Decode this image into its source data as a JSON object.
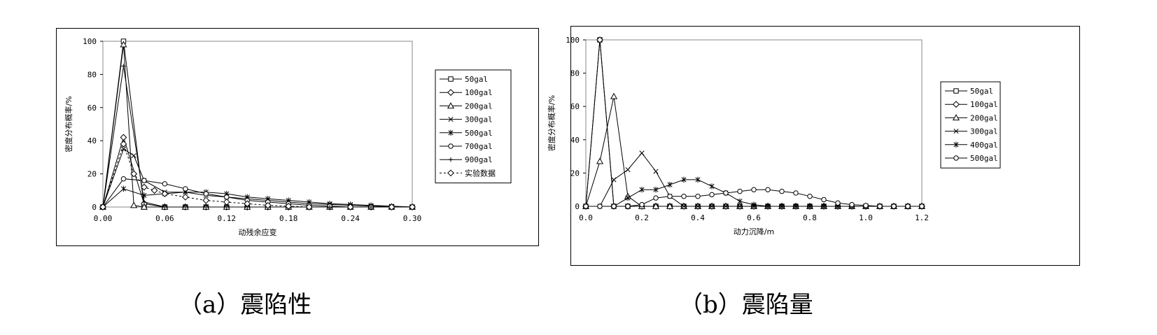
{
  "captions": {
    "a": "（a）震陷性",
    "b": "（b）震陷量"
  },
  "chart_data": [
    {
      "type": "line",
      "xlabel": "动残余应变",
      "ylabel": "密度分布概率/%",
      "xlim": [
        0,
        0.3
      ],
      "ylim": [
        0,
        100
      ],
      "xticks": [
        "0.00",
        "0.06",
        "0.12",
        "0.18",
        "0.24",
        "0.30"
      ],
      "yticks": [
        "0",
        "20",
        "40",
        "60",
        "80",
        "100"
      ],
      "grid": false,
      "legend_position": "right",
      "series": [
        {
          "name": "50gal",
          "marker": "square",
          "dash": false,
          "x": [
            0,
            0.02,
            0.04,
            0.06,
            0.08,
            0.1,
            0.12,
            0.14,
            0.16,
            0.18,
            0.2,
            0.22,
            0.24,
            0.26,
            0.28,
            0.3
          ],
          "y": [
            0,
            100,
            0,
            0,
            0,
            0,
            0,
            0,
            0,
            0,
            0,
            0,
            0,
            0,
            0,
            0
          ]
        },
        {
          "name": "100gal",
          "marker": "diamond",
          "dash": false,
          "x": [
            0,
            0.02,
            0.04,
            0.06,
            0.08,
            0.1,
            0.12,
            0.14,
            0.16,
            0.18,
            0.2,
            0.22,
            0.24,
            0.26,
            0.28,
            0.3
          ],
          "y": [
            0,
            42,
            2,
            0,
            0,
            0,
            0,
            0,
            0,
            0,
            0,
            0,
            0,
            0,
            0,
            0
          ]
        },
        {
          "name": "200gal",
          "marker": "triangle",
          "dash": false,
          "x": [
            0,
            0.02,
            0.03,
            0.04,
            0.06,
            0.08,
            0.1,
            0.12,
            0.14,
            0.16,
            0.18,
            0.2,
            0.22,
            0.24,
            0.26,
            0.28,
            0.3
          ],
          "y": [
            0,
            98,
            1,
            0,
            0,
            0,
            0,
            0,
            0,
            0,
            0,
            0,
            0,
            0,
            0,
            0,
            0
          ]
        },
        {
          "name": "300gal",
          "marker": "x",
          "dash": false,
          "x": [
            0,
            0.02,
            0.03,
            0.04,
            0.06,
            0.08,
            0.1,
            0.12,
            0.14,
            0.16,
            0.18,
            0.2,
            0.22,
            0.24,
            0.26,
            0.28,
            0.3
          ],
          "y": [
            0,
            35,
            31,
            16,
            9,
            9,
            7,
            6,
            5,
            4,
            3,
            2,
            1.5,
            1,
            0.5,
            0.3,
            0
          ]
        },
        {
          "name": "500gal",
          "marker": "star",
          "dash": false,
          "x": [
            0,
            0.02,
            0.04,
            0.06,
            0.08,
            0.1,
            0.12,
            0.14,
            0.16,
            0.18,
            0.2,
            0.22,
            0.24,
            0.26,
            0.28,
            0.3
          ],
          "y": [
            0,
            11,
            7,
            8,
            9,
            9,
            8,
            6,
            5,
            4,
            3,
            2,
            1.5,
            1,
            0.5,
            0
          ]
        },
        {
          "name": "700gal",
          "marker": "circle",
          "dash": false,
          "x": [
            0,
            0.02,
            0.04,
            0.06,
            0.08,
            0.1,
            0.12,
            0.14,
            0.16,
            0.18,
            0.2,
            0.22,
            0.24,
            0.26,
            0.28,
            0.3
          ],
          "y": [
            0,
            17,
            16,
            14,
            11,
            8,
            6,
            4,
            3,
            2,
            1,
            0.5,
            0,
            0,
            0,
            0
          ]
        },
        {
          "name": "900gal",
          "marker": "plus",
          "dash": false,
          "x": [
            0,
            0.02,
            0.04,
            0.06,
            0.08,
            0.1,
            0.12,
            0.14,
            0.16,
            0.18,
            0.2,
            0.22,
            0.24,
            0.26,
            0.28,
            0.3
          ],
          "y": [
            0,
            85,
            3,
            0,
            0,
            0,
            0,
            0,
            0,
            0,
            0,
            0,
            0,
            0,
            0,
            0
          ]
        },
        {
          "name": "实验数据",
          "marker": "diamond-open",
          "dash": true,
          "x": [
            0,
            0.02,
            0.03,
            0.04,
            0.05,
            0.06,
            0.08,
            0.1,
            0.12,
            0.14,
            0.16,
            0.18,
            0.2,
            0.24,
            0.28,
            0.3
          ],
          "y": [
            0,
            38,
            20,
            12,
            10,
            8,
            6,
            4,
            3,
            2,
            1,
            0.5,
            0,
            0,
            0,
            0
          ]
        }
      ]
    },
    {
      "type": "line",
      "xlabel": "动力沉降/m",
      "ylabel": "密度分布概率/%",
      "xlim": [
        0,
        1.2
      ],
      "ylim": [
        0,
        100
      ],
      "xticks": [
        "0.0",
        "0.2",
        "0.4",
        "0.6",
        "0.8",
        "1.0",
        "1.2"
      ],
      "yticks": [
        "0",
        "20",
        "40",
        "60",
        "80",
        "100"
      ],
      "grid": false,
      "legend_position": "right",
      "series": [
        {
          "name": "50gal",
          "marker": "square",
          "dash": false,
          "x": [
            0,
            0.05,
            0.1,
            0.15,
            0.2,
            0.25,
            0.3,
            0.35,
            0.4,
            0.45,
            0.5,
            0.55,
            0.6,
            0.65,
            0.7,
            0.75,
            0.8,
            0.85,
            0.9,
            0.95,
            1.0,
            1.05,
            1.1,
            1.15,
            1.2
          ],
          "y": [
            0,
            100,
            0,
            0,
            0,
            0,
            0,
            0,
            0,
            0,
            0,
            0,
            0,
            0,
            0,
            0,
            0,
            0,
            0,
            0,
            0,
            0,
            0,
            0,
            0
          ]
        },
        {
          "name": "100gal",
          "marker": "diamond",
          "dash": false,
          "x": [
            0,
            0.05,
            0.1,
            0.15,
            0.2,
            0.25,
            0.3,
            0.35,
            0.4,
            0.45,
            0.5,
            0.55,
            0.6,
            0.65,
            0.7,
            0.75,
            0.8,
            0.85,
            0.9,
            0.95,
            1.0,
            1.05,
            1.1,
            1.15,
            1.2
          ],
          "y": [
            0,
            100,
            0,
            0,
            0,
            0,
            0,
            0,
            0,
            0,
            0,
            0,
            0,
            0,
            0,
            0,
            0,
            0,
            0,
            0,
            0,
            0,
            0,
            0,
            0
          ]
        },
        {
          "name": "200gal",
          "marker": "triangle",
          "dash": false,
          "x": [
            0,
            0.05,
            0.1,
            0.15,
            0.2,
            0.25,
            0.3,
            0.35,
            0.4,
            0.45,
            0.5,
            0.55,
            0.6,
            0.65,
            0.7,
            0.75,
            0.8,
            0.85,
            0.9,
            0.95,
            1.0,
            1.05,
            1.1,
            1.15,
            1.2
          ],
          "y": [
            0,
            27,
            66,
            6,
            0,
            0,
            0,
            0,
            0,
            0,
            0,
            0,
            0,
            0,
            0,
            0,
            0,
            0,
            0,
            0,
            0,
            0,
            0,
            0,
            0
          ]
        },
        {
          "name": "300gal",
          "marker": "x",
          "dash": false,
          "x": [
            0,
            0.05,
            0.1,
            0.15,
            0.2,
            0.25,
            0.3,
            0.35,
            0.4,
            0.45,
            0.5,
            0.55,
            0.6,
            0.65,
            0.7,
            0.75,
            0.8,
            0.85,
            0.9,
            0.95,
            1.0,
            1.05,
            1.1,
            1.15,
            1.2
          ],
          "y": [
            0,
            0,
            16,
            22,
            32,
            21,
            6,
            0,
            0,
            0,
            0,
            0,
            0,
            0,
            0,
            0,
            0,
            0,
            0,
            0,
            0,
            0,
            0,
            0,
            0
          ]
        },
        {
          "name": "400gal",
          "marker": "star",
          "dash": false,
          "x": [
            0,
            0.05,
            0.1,
            0.15,
            0.2,
            0.25,
            0.3,
            0.35,
            0.4,
            0.45,
            0.5,
            0.55,
            0.6,
            0.65,
            0.7,
            0.75,
            0.8,
            0.85,
            0.9,
            0.95,
            1.0,
            1.05,
            1.1,
            1.15,
            1.2
          ],
          "y": [
            0,
            0,
            0,
            5,
            10,
            10,
            13,
            16,
            16,
            12,
            8,
            3,
            1,
            0,
            0,
            0,
            0,
            0,
            0,
            0,
            0,
            0,
            0,
            0,
            0
          ]
        },
        {
          "name": "500gal",
          "marker": "circle",
          "dash": false,
          "x": [
            0,
            0.05,
            0.1,
            0.15,
            0.2,
            0.25,
            0.3,
            0.35,
            0.4,
            0.45,
            0.5,
            0.55,
            0.6,
            0.65,
            0.7,
            0.75,
            0.8,
            0.85,
            0.9,
            0.95,
            1.0,
            1.05,
            1.1,
            1.15,
            1.2
          ],
          "y": [
            0,
            0,
            0,
            0,
            1,
            5,
            6,
            6,
            6,
            7,
            8,
            9,
            10,
            10,
            9,
            8,
            6,
            4,
            2,
            1,
            0.5,
            0,
            0,
            0,
            0
          ]
        }
      ]
    }
  ]
}
